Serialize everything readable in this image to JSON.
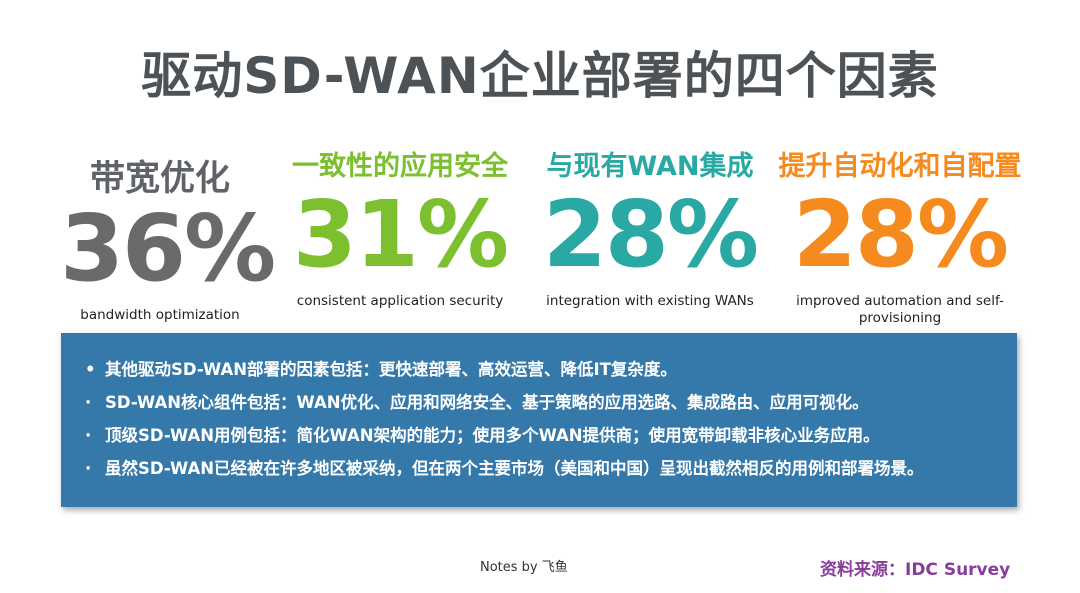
{
  "title": "驱动SD-WAN企业部署的四个因素",
  "stats": [
    {
      "label": "带宽优化",
      "value": "36%",
      "caption": "bandwidth optimization",
      "color": "#6a6a6a"
    },
    {
      "label": "一致性的应用安全",
      "value": "31%",
      "caption": "consistent application security",
      "color": "#7cbf2f"
    },
    {
      "label": "与现有WAN集成",
      "value": "28%",
      "caption": "integration with existing WANs",
      "color": "#2aa8a3"
    },
    {
      "label": "提升自动化和自配置",
      "value": "28%",
      "caption": "improved automation and self-provisioning",
      "color": "#f58a1f"
    }
  ],
  "bullets": [
    {
      "marker": "•",
      "text": "其他驱动SD-WAN部署的因素包括：更快速部署、高效运营、降低IT复杂度。"
    },
    {
      "marker": "·",
      "text": "SD-WAN核心组件包括：WAN优化、应用和网络安全、基于策略的应用选路、集成路由、应用可视化。"
    },
    {
      "marker": "·",
      "text": "顶级SD-WAN用例包括：简化WAN架构的能力；使用多个WAN提供商；使用宽带卸载非核心业务应用。"
    },
    {
      "marker": "·",
      "text": "虽然SD-WAN已经被在许多地区被采纳，但在两个主要市场（美国和中国）呈现出截然相反的用例和部署场景。"
    }
  ],
  "footer": {
    "note": "Notes by 飞鱼",
    "source": "资料来源：IDC Survey"
  },
  "colors": {
    "panel": "#3579aa",
    "title": "#4d5257",
    "source": "#8a3b9e"
  }
}
